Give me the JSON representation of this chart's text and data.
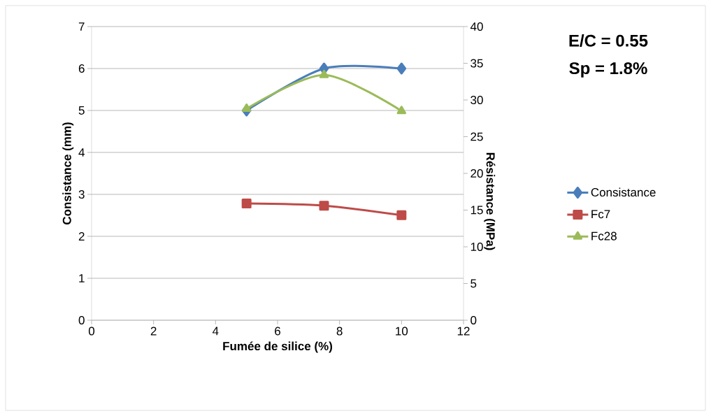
{
  "chart_data": {
    "type": "line",
    "xlabel": "Fumée de silice (%)",
    "ylabel": "Consistance (mm)",
    "y2label": "Résistance (MPa)",
    "x": [
      5,
      7.5,
      10
    ],
    "series": [
      {
        "name": "Consistance",
        "color": "#4a7ebb",
        "marker": "diamond",
        "values": [
          5,
          6,
          6
        ]
      },
      {
        "name": "Fc7",
        "color": "#be4b48",
        "marker": "square",
        "axis": "y2",
        "values": [
          15.9,
          15.6,
          14.3
        ]
      },
      {
        "name": "Fc28",
        "color": "#9bbb59",
        "marker": "triangle",
        "axis": "y2",
        "values": [
          28.8,
          33.4,
          28.5
        ]
      }
    ],
    "xlim": [
      0,
      12
    ],
    "xticks": [
      0,
      2,
      4,
      6,
      8,
      10,
      12
    ],
    "ylim": [
      0,
      7
    ],
    "yticks": [
      0,
      1,
      2,
      3,
      4,
      5,
      6,
      7
    ],
    "y2lim": [
      0,
      40
    ],
    "y2ticks": [
      0,
      5,
      10,
      15,
      20,
      25,
      30,
      35,
      40
    ],
    "grid": "y",
    "legend": "right",
    "annotations": [
      "E/C = 0.55",
      "Sp = 1.8%"
    ]
  }
}
